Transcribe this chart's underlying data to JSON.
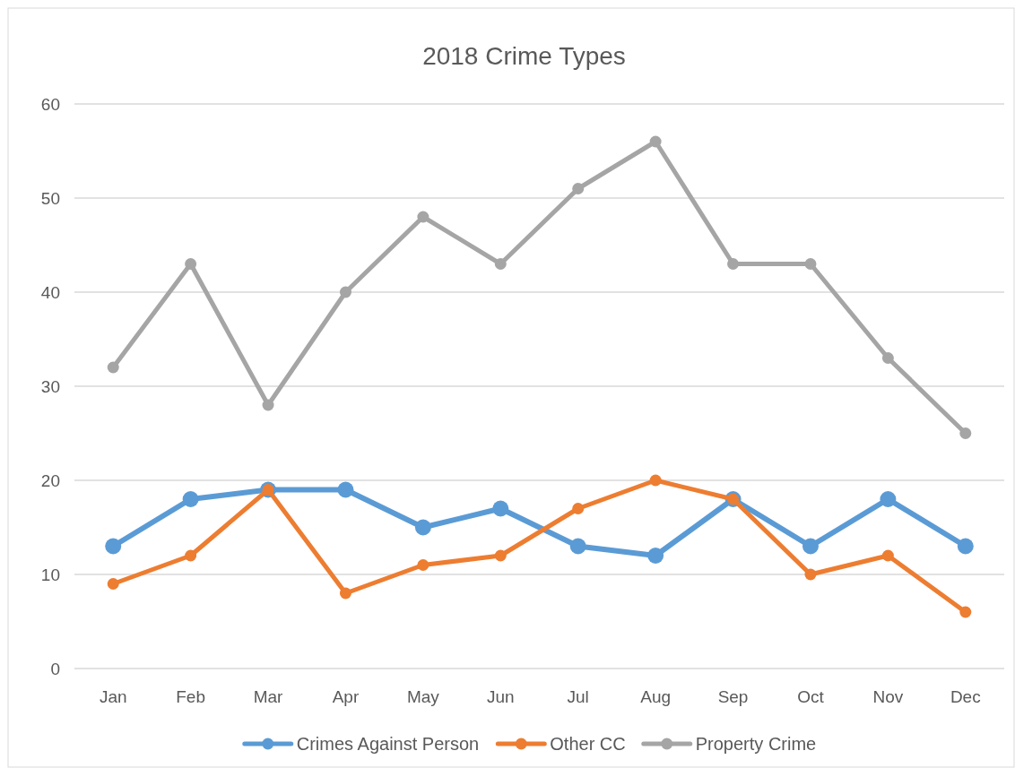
{
  "chart_data": {
    "type": "line",
    "title": "2018 Crime Types",
    "categories": [
      "Jan",
      "Feb",
      "Mar",
      "Apr",
      "May",
      "Jun",
      "Jul",
      "Aug",
      "Sep",
      "Oct",
      "Nov",
      "Dec"
    ],
    "series": [
      {
        "name": "Crimes Against Person",
        "color": "#5b9bd5",
        "values": [
          13,
          18,
          19,
          19,
          15,
          17,
          13,
          12,
          18,
          13,
          18,
          13
        ]
      },
      {
        "name": "Other CC",
        "color": "#ed7d31",
        "values": [
          9,
          12,
          19,
          8,
          11,
          12,
          17,
          20,
          18,
          10,
          12,
          6
        ]
      },
      {
        "name": "Property Crime",
        "color": "#a5a5a5",
        "values": [
          32,
          43,
          28,
          40,
          48,
          43,
          51,
          56,
          43,
          43,
          33,
          25
        ]
      }
    ],
    "ylim": [
      0,
      60
    ],
    "yticks": [
      0,
      10,
      20,
      30,
      40,
      50,
      60
    ],
    "grid": "y",
    "legend": "bottom",
    "marker": "circle",
    "line_style": "solid"
  }
}
